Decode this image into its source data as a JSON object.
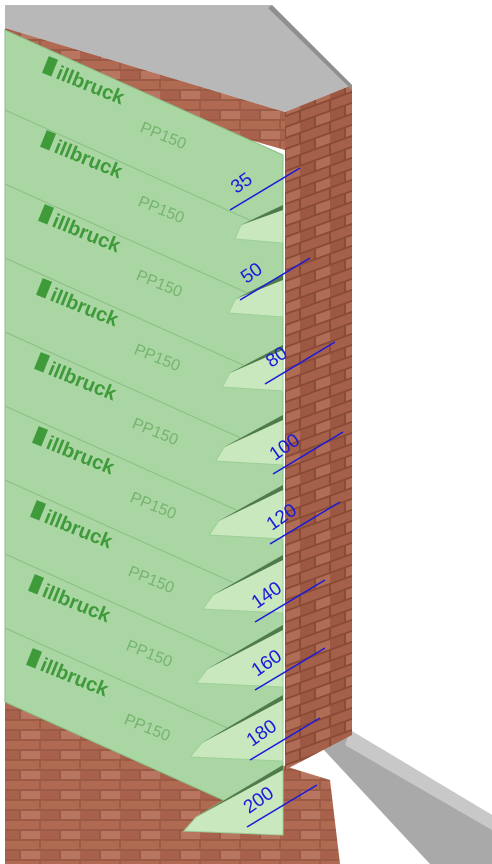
{
  "strips": [
    {
      "brand": "illbruck",
      "product": "PP150",
      "dimension": 35
    },
    {
      "brand": "illbruck",
      "product": "PP150",
      "dimension": 50
    },
    {
      "brand": "illbruck",
      "product": "PP150",
      "dimension": 80
    },
    {
      "brand": "illbruck",
      "product": "PP150",
      "dimension": 100
    },
    {
      "brand": "illbruck",
      "product": "PP150",
      "dimension": 120
    },
    {
      "brand": "illbruck",
      "product": "PP150",
      "dimension": 140
    },
    {
      "brand": "illbruck",
      "product": "PP150",
      "dimension": 160
    },
    {
      "brand": "illbruck",
      "product": "PP150",
      "dimension": 180
    },
    {
      "brand": "illbruck",
      "product": "PP150",
      "dimension": 200
    }
  ]
}
